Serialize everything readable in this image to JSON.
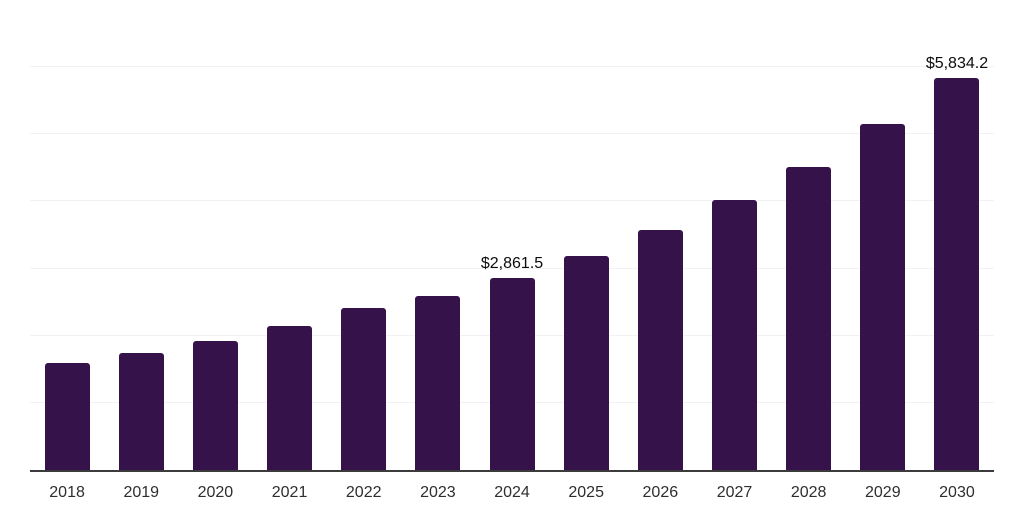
{
  "chart_data": {
    "type": "bar",
    "title": "",
    "xlabel": "",
    "ylabel": "",
    "categories": [
      "2018",
      "2019",
      "2020",
      "2021",
      "2022",
      "2023",
      "2024",
      "2025",
      "2026",
      "2027",
      "2028",
      "2029",
      "2030"
    ],
    "values": [
      1590,
      1750,
      1915,
      2140,
      2420,
      2585,
      2861.5,
      3195,
      3580,
      4025,
      4520,
      5150,
      5834.2
    ],
    "value_labels": {
      "2024": "$2,861.5",
      "2030": "$5,834.2"
    },
    "ylim": [
      0,
      7000
    ],
    "gridline_step": 1000,
    "grid": "horizontal",
    "legend": "none",
    "axis_ticks_y_shown": false,
    "colors": {
      "bar": "#36124a",
      "gridline": "#f2f2f4",
      "axis_line": "#3b3b3b",
      "tick_label": "#2e2e2e",
      "value_label": "#0d0d0d",
      "background": "#ffffff"
    }
  }
}
